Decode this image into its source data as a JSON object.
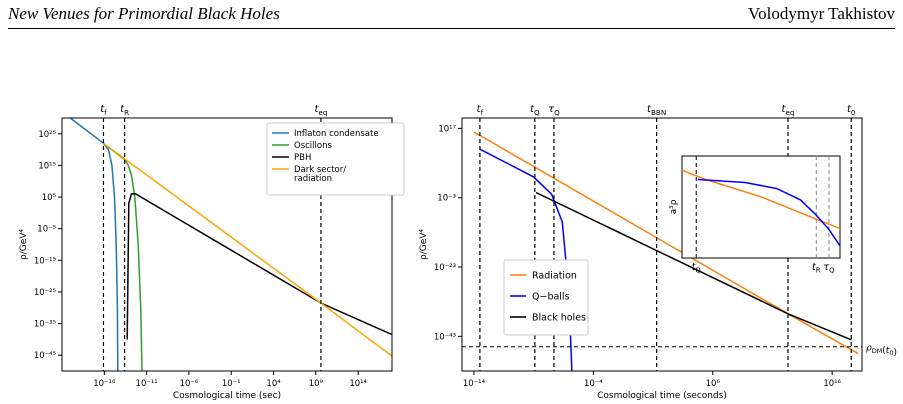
{
  "header": {
    "left_title": "New Venues for Primordial Black Holes",
    "right_author": "Volodymyr Takhistov"
  },
  "colors": {
    "inflaton": "#1f77b4",
    "oscillons": "#2ca02c",
    "pbh": "#000000",
    "dark_sector": "#ffa500",
    "radiation": "#ff7f0e",
    "qballs": "#0000ff"
  },
  "chart_data": [
    {
      "type": "line",
      "xlabel": "Cosmological time (sec)",
      "ylabel": "ρ/GeV⁴",
      "xscale": "log",
      "yscale": "log",
      "xlim": [
        -21,
        18
      ],
      "ylim": [
        -50,
        30
      ],
      "xticks": [
        {
          "v": -16,
          "label": "10⁻¹⁶"
        },
        {
          "v": -11,
          "label": "10⁻¹¹"
        },
        {
          "v": -6,
          "label": "10⁻⁶"
        },
        {
          "v": -1,
          "label": "10⁻¹"
        },
        {
          "v": 4,
          "label": "10⁴"
        },
        {
          "v": 9,
          "label": "10⁹"
        },
        {
          "v": 14,
          "label": "10¹⁴"
        }
      ],
      "yticks": [
        {
          "v": 25,
          "label": "10²⁵"
        },
        {
          "v": 15,
          "label": "10¹⁵"
        },
        {
          "v": 5,
          "label": "10⁵"
        },
        {
          "v": -5,
          "label": "10⁻⁵"
        },
        {
          "v": -15,
          "label": "10⁻¹⁵"
        },
        {
          "v": -25,
          "label": "10⁻²⁵"
        },
        {
          "v": -35,
          "label": "10⁻³⁵"
        },
        {
          "v": -45,
          "label": "10⁻⁴⁵"
        }
      ],
      "vlines": [
        {
          "v": -16.1,
          "label": "t_f"
        },
        {
          "v": -13.6,
          "label": "t_R"
        },
        {
          "v": 9.6,
          "label": "t_eq"
        }
      ],
      "legend_position": "top-right",
      "series": [
        {
          "name": "Inflaton condensate",
          "color": "#1f77b4",
          "points": [
            [
              -21,
              32
            ],
            [
              -16.1,
              22
            ],
            [
              -15.5,
              20
            ],
            [
              -15.1,
              15
            ],
            [
              -14.8,
              5
            ],
            [
              -14.6,
              -10
            ],
            [
              -14.45,
              -30
            ],
            [
              -14.4,
              -50
            ]
          ]
        },
        {
          "name": "Oscillons",
          "color": "#2ca02c",
          "points": [
            [
              -16.1,
              22
            ],
            [
              -13.6,
              16.8
            ],
            [
              -13.2,
              15.2
            ],
            [
              -12.8,
              12
            ],
            [
              -12.4,
              5
            ],
            [
              -12.0,
              -10
            ],
            [
              -11.7,
              -30
            ],
            [
              -11.55,
              -50
            ]
          ]
        },
        {
          "name": "PBH",
          "color": "#000000",
          "points": [
            [
              -13.3,
              -40
            ],
            [
              -13.1,
              3
            ],
            [
              -12.8,
              6
            ],
            [
              -12.3,
              6
            ],
            [
              9.6,
              -28.5
            ],
            [
              18,
              -38.5
            ]
          ]
        },
        {
          "name": "Dark sector/\nradiation",
          "color": "#ffa500",
          "points": [
            [
              -16.1,
              22
            ],
            [
              9.6,
              -28.5
            ],
            [
              18,
              -45.3
            ]
          ]
        }
      ]
    },
    {
      "type": "line",
      "xlabel": "Cosmological time (seconds)",
      "ylabel": "ρ/GeV⁴",
      "xscale": "log",
      "yscale": "log",
      "xlim": [
        -15,
        18.5
      ],
      "ylim": [
        -53,
        20
      ],
      "xticks": [
        {
          "v": -14,
          "label": "10⁻¹⁴"
        },
        {
          "v": -4,
          "label": "10⁻⁴"
        },
        {
          "v": 6,
          "label": "10⁶"
        },
        {
          "v": 16,
          "label": "10¹⁶"
        }
      ],
      "yticks": [
        {
          "v": 17,
          "label": "10¹⁷"
        },
        {
          "v": -3,
          "label": "10⁻³"
        },
        {
          "v": -23,
          "label": "10⁻²³"
        },
        {
          "v": -43,
          "label": "10⁻⁴³"
        }
      ],
      "vlines": [
        {
          "v": -13.5,
          "label": "t_f"
        },
        {
          "v": -8.9,
          "label": "t_Q"
        },
        {
          "v": -7.3,
          "label": "τ_Q"
        },
        {
          "v": 1.3,
          "label": "t_BBN"
        },
        {
          "v": 12.3,
          "label": "t_eq"
        },
        {
          "v": 17.6,
          "label": "t_0"
        }
      ],
      "hline": {
        "v": -46,
        "label": "ρ_DM(t_0)"
      },
      "legend_position": "lower-left",
      "series": [
        {
          "name": "Radiation",
          "color": "#ff7f0e",
          "points": [
            [
              -14,
              16
            ],
            [
              12.3,
              -36.5
            ],
            [
              18.2,
              -48
            ]
          ]
        },
        {
          "name": "Q−balls",
          "color": "#0000ff",
          "points": [
            [
              -13.5,
              11
            ],
            [
              -9,
              3
            ],
            [
              -7.5,
              -2
            ],
            [
              -6.6,
              -10
            ],
            [
              -6.2,
              -25
            ],
            [
              -5.95,
              -40
            ],
            [
              -5.8,
              -53
            ]
          ]
        },
        {
          "name": "Black holes",
          "color": "#000000",
          "points": [
            [
              -8.8,
              -1.5
            ],
            [
              12.3,
              -36.5
            ],
            [
              17.6,
              -44
            ]
          ]
        }
      ],
      "inset": {
        "ylabel": "a³ρ",
        "xlim": [
          0,
          1
        ],
        "ylim": [
          0,
          1
        ],
        "vlines": [
          {
            "v": 0.09,
            "label": "t_Q"
          },
          {
            "v": 0.85,
            "label": "t_R"
          },
          {
            "v": 0.93,
            "label": "τ_Q"
          }
        ],
        "series": [
          {
            "name": "Radiation",
            "color": "#ff7f0e",
            "points": [
              [
                0.0,
                0.86
              ],
              [
                0.15,
                0.77
              ],
              [
                0.5,
                0.6
              ],
              [
                0.85,
                0.38
              ],
              [
                1.0,
                0.29
              ]
            ]
          },
          {
            "name": "Q−balls",
            "color": "#0000ff",
            "points": [
              [
                0.1,
                0.77
              ],
              [
                0.4,
                0.74
              ],
              [
                0.6,
                0.68
              ],
              [
                0.75,
                0.57
              ],
              [
                0.85,
                0.42
              ],
              [
                0.93,
                0.28
              ],
              [
                1.0,
                0.12
              ]
            ]
          }
        ]
      }
    }
  ]
}
